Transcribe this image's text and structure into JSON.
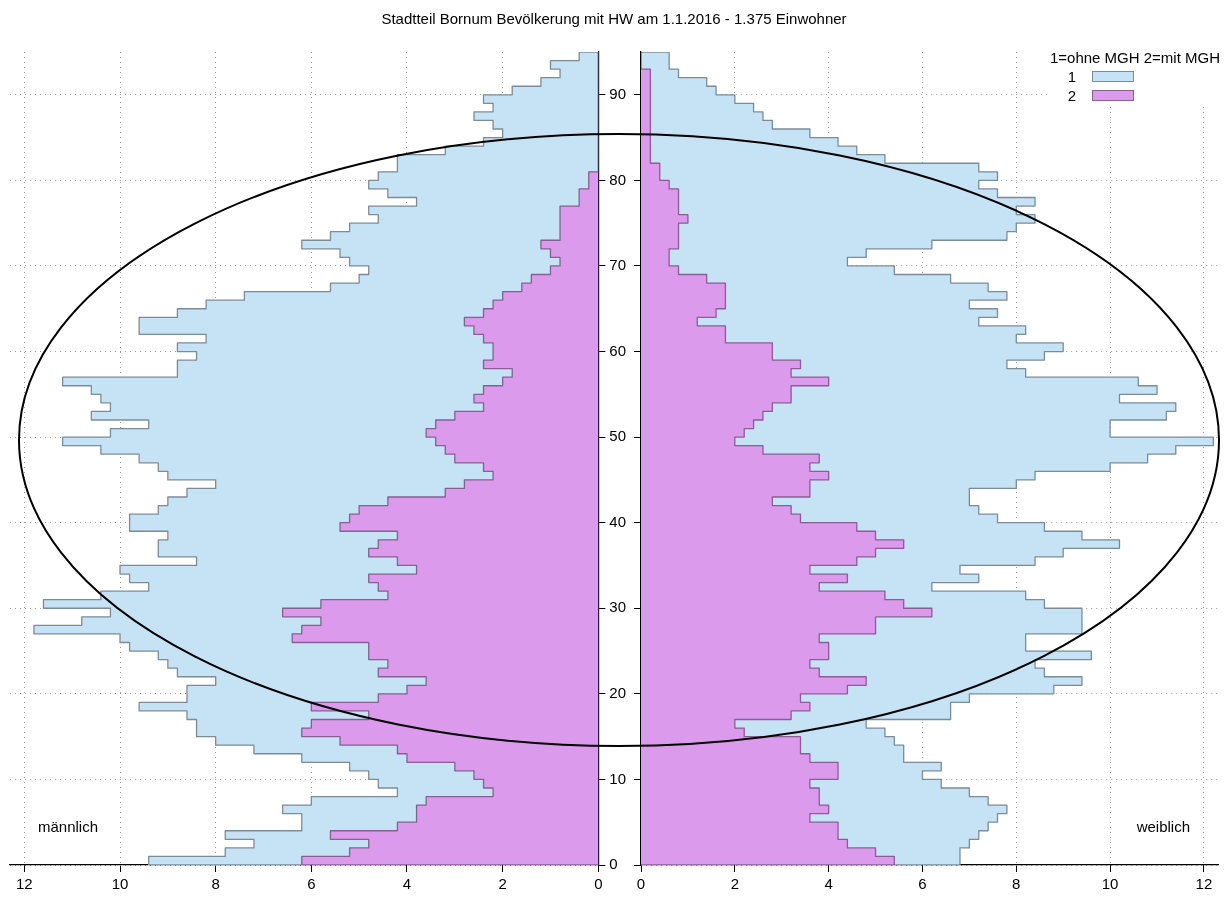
{
  "chart_data": [
    {
      "type": "histogram",
      "orientation": "horizontal",
      "title": "Stadtteil Bornum Bevölkerung mit HW am 1.1.2016 - 1.375 Einwohner",
      "bins": [
        0,
        1,
        2,
        3,
        4,
        5,
        6,
        7,
        8,
        9,
        10,
        11,
        12,
        13,
        14,
        15,
        16,
        17,
        18,
        19,
        20,
        21,
        22,
        23,
        24,
        25,
        26,
        27,
        28,
        29,
        30,
        31,
        32,
        33,
        34,
        35,
        36,
        37,
        38,
        39,
        40,
        41,
        42,
        43,
        44,
        45,
        46,
        47,
        48,
        49,
        50,
        51,
        52,
        53,
        54,
        55,
        56,
        57,
        58,
        59,
        60,
        61,
        62,
        63,
        64,
        65,
        66,
        67,
        68,
        69,
        70,
        71,
        72,
        73,
        74,
        75,
        76,
        77,
        78,
        79,
        80,
        81,
        82,
        83,
        84,
        85,
        86,
        87,
        88,
        89,
        90,
        91,
        92,
        93,
        94,
        95
      ],
      "series": [
        {
          "color": "#c6e2f5",
          "values": [
            9.4,
            7.8,
            7.2,
            7.8,
            6.2,
            6.2,
            6.6,
            6.0,
            4.2,
            4.6,
            4.8,
            5.2,
            6.2,
            7.2,
            8.0,
            8.4,
            8.4,
            8.6,
            9.6,
            8.6,
            8.6,
            8.0,
            8.8,
            9.0,
            9.2,
            9.8,
            10.0,
            11.8,
            10.8,
            10.2,
            11.6,
            10.4,
            9.4,
            9.8,
            10.0,
            8.4,
            9.2,
            9.2,
            9.0,
            9.8,
            9.8,
            9.2,
            9.0,
            8.6,
            8.0,
            9.0,
            9.2,
            9.6,
            10.4,
            11.2,
            10.2,
            9.4,
            10.6,
            10.2,
            10.4,
            10.6,
            11.2,
            8.8,
            8.8,
            8.4,
            8.8,
            8.2,
            9.6,
            9.6,
            8.8,
            8.2,
            7.4,
            5.6,
            5.0,
            4.8,
            5.2,
            5.4,
            6.2,
            5.6,
            5.2,
            4.6,
            4.8,
            3.8,
            4.4,
            4.8,
            4.6,
            4.2,
            4.2,
            3.2,
            2.4,
            2.0,
            2.2,
            2.6,
            2.2,
            2.4,
            1.8,
            1.2,
            0.8,
            1.0,
            0.4
          ]
        },
        {
          "color": "#dc9aec",
          "values": [
            6.2,
            5.2,
            4.8,
            5.6,
            4.2,
            3.8,
            3.8,
            3.6,
            2.2,
            2.4,
            2.6,
            3.0,
            4.0,
            4.2,
            5.4,
            6.2,
            6.0,
            4.8,
            6.0,
            4.6,
            4.0,
            3.6,
            4.6,
            4.4,
            4.8,
            4.8,
            6.4,
            6.2,
            5.8,
            6.6,
            5.8,
            4.4,
            4.6,
            4.8,
            3.8,
            4.2,
            4.8,
            4.6,
            4.2,
            5.4,
            5.2,
            5.0,
            4.4,
            3.2,
            2.8,
            2.2,
            2.4,
            3.0,
            3.2,
            3.4,
            3.6,
            3.4,
            3.0,
            2.4,
            2.6,
            2.4,
            2.0,
            1.8,
            2.4,
            2.2,
            2.2,
            2.4,
            2.6,
            2.8,
            2.4,
            2.2,
            2.0,
            1.6,
            1.4,
            1.0,
            0.8,
            1.0,
            1.2,
            0.8,
            0.8,
            0.8,
            0.8,
            0.4,
            0.4,
            0.2,
            0.2,
            0,
            0,
            0,
            0,
            0,
            0,
            0,
            0,
            0,
            0,
            0,
            0,
            0,
            0
          ]
        }
      ],
      "xlim": [
        12.3,
        0
      ],
      "xticks": [
        12,
        10,
        8,
        6,
        4,
        2,
        0
      ],
      "ylim": [
        0,
        95
      ],
      "yticks": [
        0,
        10,
        20,
        30,
        40,
        50,
        60,
        70,
        80,
        90
      ],
      "grid": true,
      "annotations": [
        "männlich"
      ]
    },
    {
      "type": "histogram",
      "orientation": "horizontal",
      "bins": [
        0,
        1,
        2,
        3,
        4,
        5,
        6,
        7,
        8,
        9,
        10,
        11,
        12,
        13,
        14,
        15,
        16,
        17,
        18,
        19,
        20,
        21,
        22,
        23,
        24,
        25,
        26,
        27,
        28,
        29,
        30,
        31,
        32,
        33,
        34,
        35,
        36,
        37,
        38,
        39,
        40,
        41,
        42,
        43,
        44,
        45,
        46,
        47,
        48,
        49,
        50,
        51,
        52,
        53,
        54,
        55,
        56,
        57,
        58,
        59,
        60,
        61,
        62,
        63,
        64,
        65,
        66,
        67,
        68,
        69,
        70,
        71,
        72,
        73,
        74,
        75,
        76,
        77,
        78,
        79,
        80,
        81,
        82,
        83,
        84,
        85,
        86,
        87,
        88,
        89,
        90,
        91,
        92,
        93,
        94,
        95
      ],
      "series": [
        {
          "name": "1",
          "color": "#c6e2f5",
          "values": [
            6.8,
            6.8,
            7.0,
            7.2,
            7.4,
            7.6,
            7.8,
            7.4,
            7.0,
            6.4,
            6.0,
            6.4,
            5.6,
            5.6,
            5.4,
            5.2,
            4.8,
            6.6,
            6.6,
            7.0,
            8.8,
            9.4,
            8.6,
            8.4,
            9.6,
            8.2,
            8.2,
            9.4,
            9.4,
            9.4,
            8.6,
            8.2,
            6.2,
            7.2,
            6.8,
            8.4,
            9.0,
            10.2,
            9.4,
            8.6,
            7.6,
            7.2,
            7.0,
            7.0,
            8.0,
            8.4,
            10.0,
            10.8,
            11.4,
            12.2,
            10.0,
            10.0,
            11.2,
            11.4,
            10.2,
            11.0,
            10.6,
            8.2,
            7.8,
            8.6,
            9.0,
            8.0,
            8.2,
            7.2,
            7.6,
            7.0,
            7.8,
            7.4,
            6.6,
            5.4,
            4.4,
            4.8,
            6.2,
            7.8,
            8.0,
            8.4,
            8.0,
            8.4,
            7.6,
            7.2,
            7.6,
            7.2,
            5.2,
            4.6,
            4.2,
            3.6,
            2.8,
            2.6,
            2.4,
            2.0,
            1.6,
            1.4,
            0.8,
            0.6,
            0.6
          ]
        },
        {
          "name": "2",
          "color": "#dc9aec",
          "values": [
            5.4,
            5.0,
            4.4,
            4.2,
            4.2,
            3.6,
            4.0,
            3.8,
            3.8,
            3.6,
            4.2,
            4.2,
            3.6,
            3.4,
            3.4,
            2.2,
            2.0,
            3.2,
            3.6,
            3.4,
            4.4,
            4.8,
            3.8,
            3.6,
            4.0,
            4.0,
            3.8,
            5.0,
            5.0,
            6.2,
            5.6,
            5.2,
            3.8,
            4.4,
            3.6,
            4.6,
            5.0,
            5.6,
            5.0,
            4.6,
            3.4,
            3.2,
            2.8,
            3.6,
            3.6,
            4.0,
            3.6,
            3.8,
            2.6,
            2.0,
            2.2,
            2.4,
            2.6,
            2.8,
            3.2,
            3.2,
            4.0,
            3.2,
            3.4,
            2.8,
            2.8,
            1.8,
            1.8,
            1.2,
            1.6,
            1.8,
            1.8,
            1.8,
            1.4,
            0.8,
            0.6,
            0.6,
            0.8,
            0.8,
            0.8,
            1.0,
            0.8,
            0.8,
            0.8,
            0.6,
            0.4,
            0.4,
            0.2,
            0.2,
            0.2,
            0.2,
            0.2,
            0.2,
            0.2,
            0.2,
            0.2,
            0.2,
            0.2,
            0,
            0
          ]
        }
      ],
      "legend_title": "1=ohne MGH 2=mit MGH",
      "legend": "top right",
      "xlim": [
        0,
        12.3
      ],
      "xticks": [
        0,
        2,
        4,
        6,
        8,
        10,
        12
      ],
      "ylim": [
        0,
        95
      ],
      "yticks": [
        0,
        10,
        20,
        30,
        40,
        50,
        60,
        70,
        80,
        90
      ],
      "tick_labels": "x",
      "grid": true,
      "annotations": [
        "weiblich"
      ]
    }
  ]
}
